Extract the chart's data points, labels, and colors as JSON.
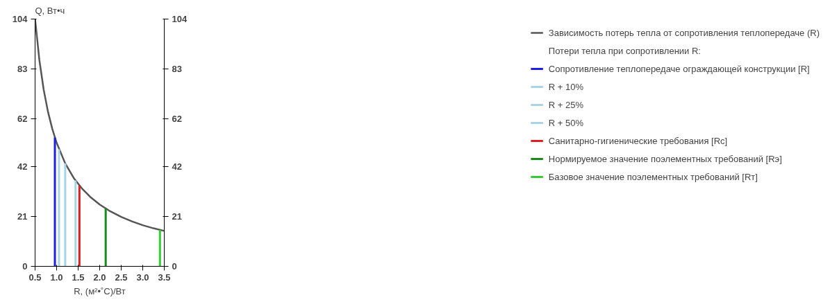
{
  "chart_data": {
    "type": "line",
    "xlabel": "R, (м²•˚C)/Вт",
    "ylabel": "Q, Вт•ч",
    "xlim": [
      0.5,
      3.5
    ],
    "xticks": [
      {
        "value": 0.5,
        "label": "0.5"
      },
      {
        "value": 1,
        "label": "1.0"
      },
      {
        "value": 1.5,
        "label": "1.5"
      },
      {
        "value": 2,
        "label": "2.0"
      },
      {
        "value": 2.5,
        "label": "2.5"
      },
      {
        "value": 3,
        "label": "3.0"
      },
      {
        "value": 3.5,
        "label": "3.5"
      }
    ],
    "ylim": [
      0,
      104
    ],
    "yticks": [
      0,
      21,
      42,
      62,
      83,
      104
    ],
    "y2lim": [
      0,
      104
    ],
    "y2ticks": [
      0,
      21,
      42,
      62,
      83,
      104
    ],
    "grid": false,
    "legend": "right",
    "marker": "none",
    "line_style": "solid",
    "annotations": [
      "Потери тепла при сопротивлении R:"
    ],
    "series": [
      {
        "name": "Зависимость потерь тепла от сопротивления теплопередаче (R)",
        "color": "#555555",
        "x": [
          0.5,
          0.6,
          0.7,
          0.8,
          0.9,
          1.0,
          1.2,
          1.4,
          1.6,
          1.8,
          2.0,
          2.25,
          2.5,
          2.75,
          3.0,
          3.25,
          3.5
        ],
        "values": [
          104,
          86.7,
          74.3,
          65,
          57.8,
          52,
          43.3,
          37.1,
          32.5,
          28.9,
          26,
          23.1,
          20.8,
          18.9,
          17.3,
          16,
          14.9
        ]
      },
      {
        "name": "Сопротивление теплопередаче ограждающей конструкции [R]",
        "color": "#1f1fe0",
        "x": [
          0.96,
          0.96
        ],
        "values": [
          0,
          54.2
        ]
      },
      {
        "name": "R + 10%",
        "color": "#a8d4e6",
        "x": [
          1.056,
          1.056
        ],
        "values": [
          0,
          49.2
        ]
      },
      {
        "name": "R + 25%",
        "color": "#a8d4e6",
        "x": [
          1.2,
          1.2
        ],
        "values": [
          0,
          43.3
        ]
      },
      {
        "name": "R + 50%",
        "color": "#a8d4e6",
        "x": [
          1.44,
          1.44
        ],
        "values": [
          0,
          36.1
        ]
      },
      {
        "name": "Санитарно-гигиенические требования [Rc]",
        "color": "#e02020",
        "x": [
          1.53,
          1.53
        ],
        "values": [
          0,
          34
        ]
      },
      {
        "name": "Нормируемое значение поэлементных требований [Rэ]",
        "color": "#1a8a1a",
        "x": [
          2.14,
          2.14
        ],
        "values": [
          0,
          24.3
        ]
      },
      {
        "name": "Базовое значение поэлементных требований [Rт]",
        "color": "#33cc33",
        "x": [
          3.4,
          3.4
        ],
        "values": [
          0,
          15.3
        ]
      }
    ]
  }
}
